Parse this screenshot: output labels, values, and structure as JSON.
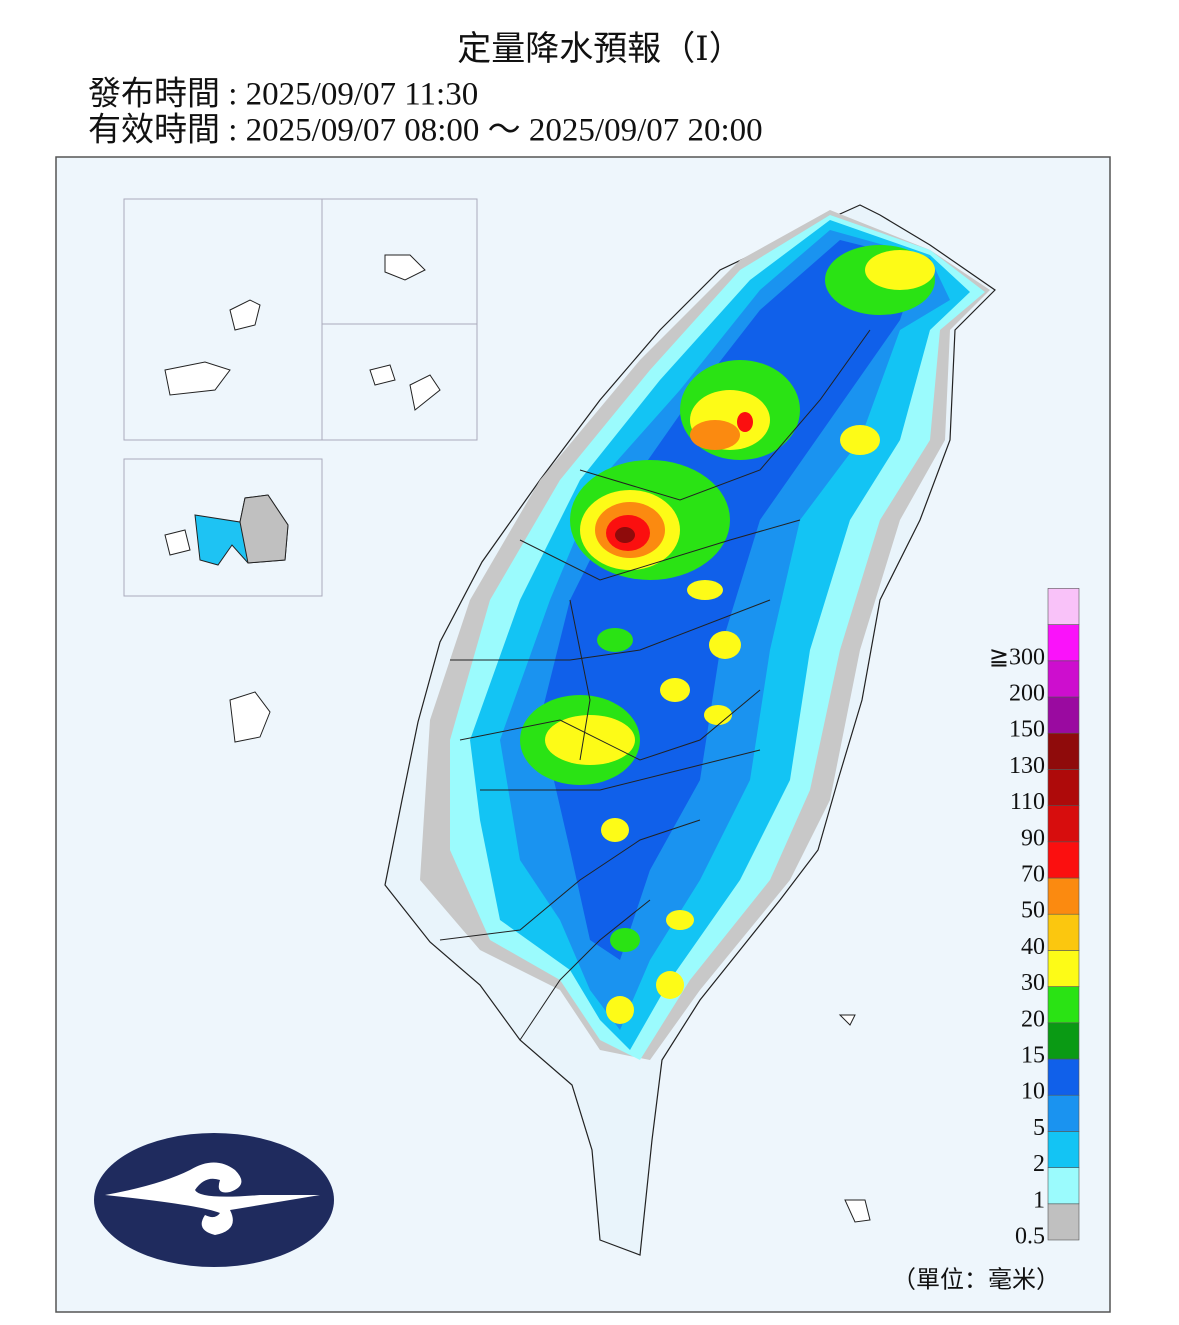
{
  "header": {
    "title": "定量降水預報（Ⅰ）",
    "issue": "發布時間 : 2025/09/07 11:30",
    "valid": "有效時間 : 2025/09/07 08:00 ～ 2025/09/07 20:00"
  },
  "legend": {
    "levels": [
      {
        "label": "0.5",
        "color": "#c0c0c0"
      },
      {
        "label": "1",
        "color": "#9bfbfd"
      },
      {
        "label": "2",
        "color": "#13c4f4"
      },
      {
        "label": "5",
        "color": "#1a93f0"
      },
      {
        "label": "10",
        "color": "#1060ea"
      },
      {
        "label": "15",
        "color": "#0a9a14"
      },
      {
        "label": "20",
        "color": "#2ae314"
      },
      {
        "label": "30",
        "color": "#fdfb17"
      },
      {
        "label": "40",
        "color": "#fbc70f"
      },
      {
        "label": "50",
        "color": "#fb8a10"
      },
      {
        "label": "70",
        "color": "#fb0f0f"
      },
      {
        "label": "90",
        "color": "#d70d0d"
      },
      {
        "label": "110",
        "color": "#ae0a0a"
      },
      {
        "label": "130",
        "color": "#8f0b0b"
      },
      {
        "label": "150",
        "color": "#9a0aa0"
      },
      {
        "label": "200",
        "color": "#cd0ece"
      },
      {
        "label": "≧300",
        "color": "#fa12fa"
      }
    ],
    "top_color": "#f9c2f9",
    "unit": "（單位：毫米）"
  }
}
